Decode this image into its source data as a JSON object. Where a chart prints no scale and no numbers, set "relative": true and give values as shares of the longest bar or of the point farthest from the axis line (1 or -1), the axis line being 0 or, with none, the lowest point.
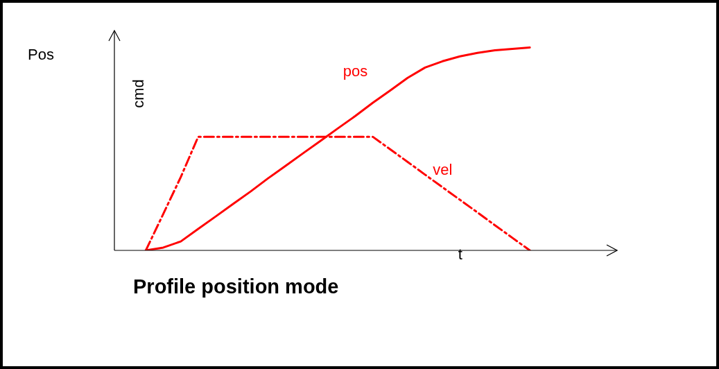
{
  "chart_data": {
    "type": "line",
    "title": "Profile position mode",
    "xlabel": "t",
    "ylabel": "cmd",
    "annotations": [
      "Pos"
    ],
    "relative": true,
    "legend": false,
    "marker": "none",
    "categories": [
      null,
      null,
      null,
      null,
      null,
      null,
      null,
      null,
      null,
      null,
      null,
      null,
      null,
      null,
      null,
      null,
      null,
      null,
      null,
      null,
      null,
      null,
      null,
      null,
      null,
      null,
      null,
      null,
      null,
      null
    ],
    "series": [
      {
        "name": "pos",
        "color": "#ff0000",
        "line_style": "solid",
        "values": [
          null,
          null,
          0,
          0.014,
          0.044,
          0.106,
          0.167,
          0.229,
          0.29,
          0.355,
          0.416,
          0.478,
          0.539,
          0.601,
          0.662,
          0.727,
          0.788,
          0.85,
          0.901,
          0.932,
          0.956,
          0.973,
          0.986,
          0.993,
          1,
          null,
          null,
          null,
          null,
          null
        ]
      },
      {
        "name": "vel",
        "color": "#ff0000",
        "line_style": "dashed",
        "values": [
          null,
          null,
          0,
          0.18,
          0.361,
          0.56,
          0.56,
          0.56,
          0.56,
          0.56,
          0.56,
          0.56,
          0.56,
          0.56,
          0.56,
          0.56,
          0.498,
          0.436,
          0.373,
          0.311,
          0.249,
          0.187,
          0.124,
          0.062,
          0,
          null,
          null,
          null,
          null,
          null
        ]
      }
    ]
  }
}
